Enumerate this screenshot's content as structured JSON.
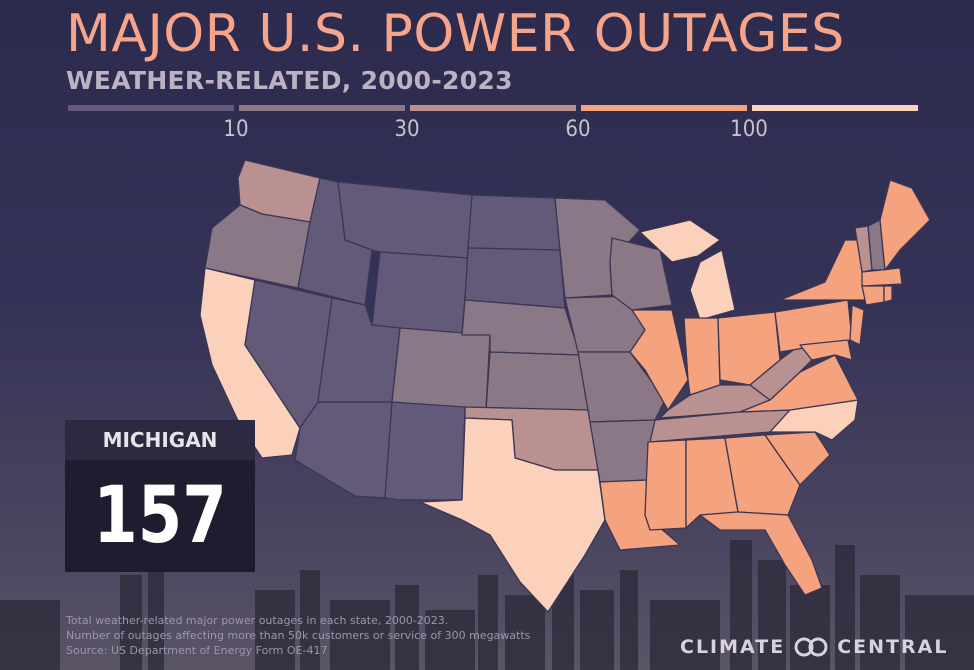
{
  "title": "MAJOR U.S. POWER OUTAGES",
  "subtitle": "WEATHER-RELATED, 2000-2023",
  "legend": {
    "ticks": [
      "10",
      "30",
      "60",
      "100"
    ],
    "colors": [
      "#625a78",
      "#8a7887",
      "#b89190",
      "#f5a27f",
      "#fcd1bc"
    ]
  },
  "callout": {
    "state": "MICHIGAN",
    "value": "157"
  },
  "footnotes": [
    "Total weather-related major power outages in each state, 2000-2023.",
    "Number of outages affecting more than 50k customers or service of 300 megawatts",
    "Source: US Department of Energy Form OE-417"
  ],
  "brand": {
    "left": "CLIMATE",
    "right": "CENTRAL",
    "icon": "climate-central-logo-icon"
  }
}
